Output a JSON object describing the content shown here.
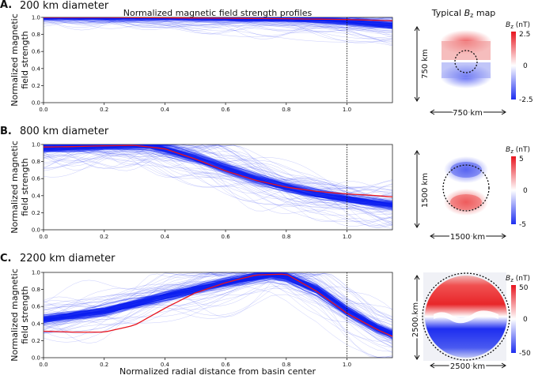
{
  "figure": {
    "panel_a_letter": "A.",
    "panel_a_title": "200 km diameter",
    "panel_b_letter": "B.",
    "panel_b_title": "800 km diameter",
    "panel_c_letter": "C.",
    "panel_c_title": "2200 km diameter",
    "profiles_header": "Normalized magnetic field strength profiles",
    "map_header_prefix": "Typical ",
    "map_header_symbol": "B",
    "map_header_sub": "z",
    "map_header_suffix": " map",
    "ylabel_line1": "Normalized magnetic",
    "ylabel_line2": "field strength",
    "xlabel": "Normalized radial distance from basin center",
    "colorbar_symbol": "B",
    "colorbar_sub": "z",
    "colorbar_unit": " (nT)"
  },
  "maps": [
    {
      "side_label": "750 km",
      "bottom_label": "750 km",
      "cb_max": "2.5",
      "cb_mid": "0",
      "cb_min": "-2.5"
    },
    {
      "side_label": "1500 km",
      "bottom_label": "1500 km",
      "cb_max": "5",
      "cb_mid": "0",
      "cb_min": "-5"
    },
    {
      "side_label": "2500 km",
      "bottom_label": "2500 km",
      "cb_max": "50",
      "cb_mid": "0",
      "cb_min": "-50"
    }
  ],
  "colors": {
    "profile_blue": "#0a1cf0",
    "typical_red": "#e8141e",
    "map_red": "#e8262a",
    "map_blue": "#1e2ef0"
  },
  "chart_data": [
    {
      "type": "line",
      "title": "200 km diameter",
      "xlabel": "",
      "ylabel": "Normalized magnetic field strength",
      "xlim": [
        0,
        1.15
      ],
      "ylim": [
        0,
        1.0
      ],
      "xticks": [
        "0.0",
        "0.2",
        "0.4",
        "0.6",
        "0.8",
        "1.0"
      ],
      "yticks": [
        "0.0",
        "0.2",
        "0.4",
        "0.6",
        "0.8",
        "1.0"
      ],
      "reference_line_x": 1.0,
      "series": [
        {
          "x": [
            0,
            0.2,
            0.4,
            0.6,
            0.8,
            1.0,
            1.15
          ],
          "values": [
            1.0,
            1.0,
            0.995,
            0.99,
            0.985,
            0.975,
            0.96
          ]
        }
      ],
      "band_center": {
        "x": [
          0,
          0.2,
          0.4,
          0.6,
          0.8,
          0.9,
          1.0,
          1.1,
          1.15
        ],
        "values": [
          0.995,
          0.995,
          0.995,
          0.99,
          0.985,
          0.975,
          0.955,
          0.925,
          0.91
        ]
      }
    },
    {
      "type": "line",
      "title": "800 km diameter",
      "xlabel": "",
      "ylabel": "Normalized magnetic field strength",
      "xlim": [
        0,
        1.15
      ],
      "ylim": [
        0,
        1.0
      ],
      "xticks": [
        "0.0",
        "0.2",
        "0.4",
        "0.6",
        "0.8",
        "1.0"
      ],
      "yticks": [
        "0.0",
        "0.2",
        "0.4",
        "0.6",
        "0.8",
        "1.0"
      ],
      "reference_line_x": 1.0,
      "series": [
        {
          "x": [
            0,
            0.1,
            0.2,
            0.3,
            0.4,
            0.5,
            0.6,
            0.7,
            0.8,
            0.9,
            1.0,
            1.1,
            1.15
          ],
          "values": [
            0.97,
            0.975,
            0.985,
            0.99,
            0.95,
            0.83,
            0.69,
            0.58,
            0.5,
            0.45,
            0.42,
            0.4,
            0.385
          ]
        }
      ],
      "band_center": {
        "x": [
          0,
          0.1,
          0.2,
          0.3,
          0.35,
          0.4,
          0.5,
          0.6,
          0.7,
          0.8,
          0.9,
          1.0,
          1.1,
          1.15
        ],
        "values": [
          0.96,
          0.97,
          0.985,
          0.99,
          0.985,
          0.94,
          0.84,
          0.72,
          0.6,
          0.5,
          0.42,
          0.36,
          0.31,
          0.29
        ]
      }
    },
    {
      "type": "line",
      "title": "2200 km diameter",
      "xlabel": "Normalized radial distance from basin center",
      "ylabel": "Normalized magnetic field strength",
      "xlim": [
        0,
        1.15
      ],
      "ylim": [
        0,
        1.0
      ],
      "xticks": [
        "0.0",
        "0.2",
        "0.4",
        "0.6",
        "0.8",
        "1.0"
      ],
      "yticks": [
        "0.0",
        "0.2",
        "0.4",
        "0.6",
        "0.8",
        "1.0"
      ],
      "reference_line_x": 1.0,
      "series": [
        {
          "x": [
            0,
            0.1,
            0.2,
            0.3,
            0.4,
            0.5,
            0.6,
            0.7,
            0.8,
            0.9,
            1.0,
            1.1,
            1.15
          ],
          "values": [
            0.31,
            0.3,
            0.3,
            0.38,
            0.58,
            0.76,
            0.88,
            0.97,
            0.98,
            0.78,
            0.52,
            0.33,
            0.25
          ]
        }
      ],
      "band_center": {
        "x": [
          0,
          0.2,
          0.4,
          0.6,
          0.75,
          0.8,
          0.9,
          1.0,
          1.1,
          1.15
        ],
        "values": [
          0.45,
          0.55,
          0.72,
          0.88,
          0.98,
          0.95,
          0.8,
          0.55,
          0.35,
          0.28
        ]
      }
    }
  ]
}
